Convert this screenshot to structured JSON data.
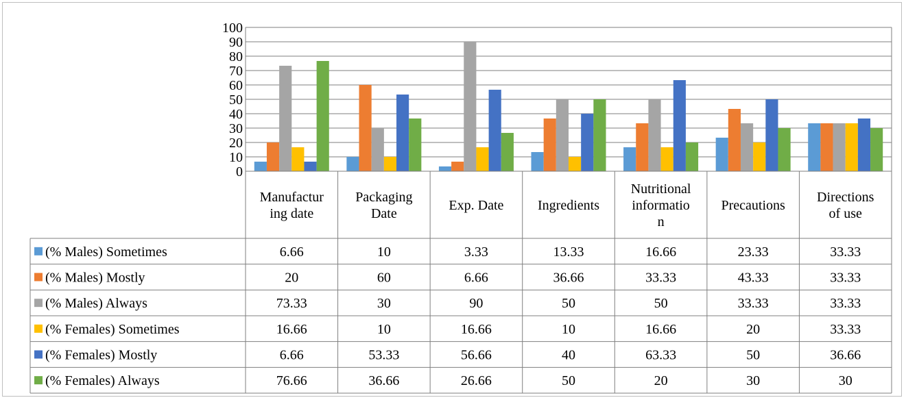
{
  "chart_data": {
    "type": "bar",
    "title": "",
    "xlabel": "",
    "ylabel": "",
    "ylim": [
      0,
      100
    ],
    "yticks": [
      "0",
      "10",
      "20",
      "30",
      "40",
      "50",
      "60",
      "70",
      "80",
      "90",
      "100"
    ],
    "grid": true,
    "legend": "data-table",
    "categories": [
      [
        "Manufactur",
        "ing date"
      ],
      [
        "Packaging",
        "Date"
      ],
      [
        "Exp. Date"
      ],
      [
        "Ingredients"
      ],
      [
        "Nutritional",
        "informatio",
        "n"
      ],
      [
        "Precautions"
      ],
      [
        "Directions",
        "of use"
      ]
    ],
    "series": [
      {
        "name": "(% Males)  Sometimes",
        "color": "#5b9bd5",
        "values": [
          6.66,
          10,
          3.33,
          13.33,
          16.66,
          23.33,
          33.33
        ]
      },
      {
        "name": "(% Males)   Mostly",
        "color": "#ed7d31",
        "values": [
          20,
          60,
          6.66,
          36.66,
          33.33,
          43.33,
          33.33
        ]
      },
      {
        "name": "(% Males)    Always",
        "color": "#a5a5a5",
        "values": [
          73.33,
          30,
          90,
          50,
          50,
          33.33,
          33.33
        ]
      },
      {
        "name": "(% Females)  Sometimes",
        "color": "#ffc000",
        "values": [
          16.66,
          10,
          16.66,
          10,
          16.66,
          20,
          33.33
        ]
      },
      {
        "name": "(% Females)   Mostly",
        "color": "#4472c4",
        "values": [
          6.66,
          53.33,
          56.66,
          40,
          63.33,
          50,
          36.66
        ]
      },
      {
        "name": "(% Females)    Always",
        "color": "#70ad47",
        "values": [
          76.66,
          36.66,
          26.66,
          50,
          20,
          30,
          30
        ]
      }
    ]
  }
}
